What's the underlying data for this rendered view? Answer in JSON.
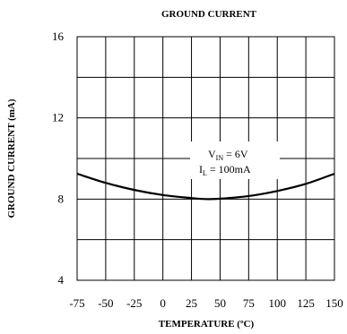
{
  "chart_data": {
    "type": "line",
    "title": "GROUND CURRENT",
    "xlabel": "TEMPERATURE (ºC)",
    "ylabel": "GROUND CURRENT (mA)",
    "xlim": [
      -75,
      150
    ],
    "ylim": [
      4,
      16
    ],
    "xticks": [
      -75,
      -50,
      -25,
      0,
      25,
      50,
      75,
      100,
      125,
      150
    ],
    "yticks": [
      4,
      8,
      12,
      16
    ],
    "grid": true,
    "series": [
      {
        "values": [
          {
            "x": -75,
            "y": 9.25
          },
          {
            "x": -50,
            "y": 8.8
          },
          {
            "x": -25,
            "y": 8.45
          },
          {
            "x": 0,
            "y": 8.2
          },
          {
            "x": 25,
            "y": 8.05
          },
          {
            "x": 37,
            "y": 8.0
          },
          {
            "x": 50,
            "y": 8.02
          },
          {
            "x": 75,
            "y": 8.15
          },
          {
            "x": 100,
            "y": 8.4
          },
          {
            "x": 125,
            "y": 8.75
          },
          {
            "x": 150,
            "y": 9.25
          }
        ]
      }
    ],
    "annotation": {
      "line1_main": "V",
      "line1_sub": "IN",
      "line1_rest": " = 6V",
      "line2_main": "I",
      "line2_sub": "L",
      "line2_rest": " = 100mA"
    }
  }
}
